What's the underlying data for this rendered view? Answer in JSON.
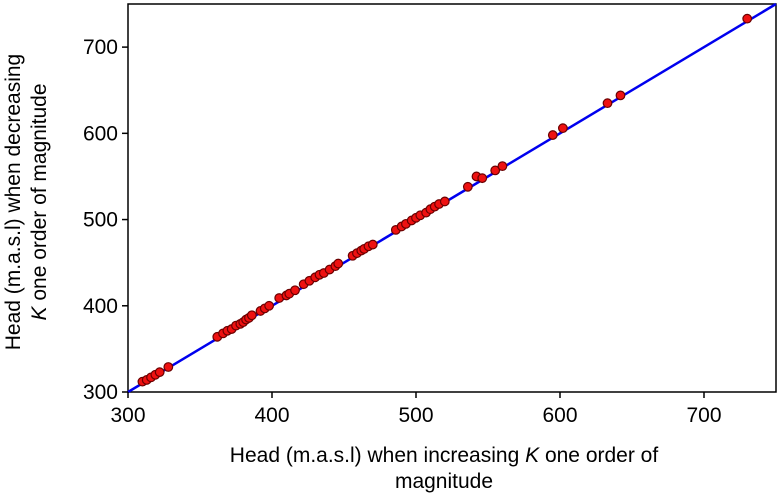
{
  "chart_data": {
    "type": "scatter",
    "xlabel_lines": [
      [
        "Head (m.a.s.l) when increasing ",
        {
          "italic": "K"
        },
        " one order of"
      ],
      [
        "magnitude"
      ]
    ],
    "ylabel_lines": [
      [
        "Head (m.a.s.l) when decreasing"
      ],
      [
        {
          "italic": "K"
        },
        " one order of magnitude"
      ]
    ],
    "xlim": [
      300,
      750
    ],
    "ylim": [
      300,
      750
    ],
    "xticks": [
      300,
      400,
      500,
      600,
      700
    ],
    "yticks": [
      300,
      400,
      500,
      600,
      700
    ],
    "grid": false,
    "reference_line": {
      "x": [
        300,
        750
      ],
      "y": [
        300,
        750
      ],
      "color": "#0000ee"
    },
    "point_color": "#ee1111",
    "point_edge": "#6b0000",
    "points": [
      [
        310,
        312
      ],
      [
        313,
        314
      ],
      [
        316,
        317
      ],
      [
        319,
        320
      ],
      [
        322,
        323
      ],
      [
        328,
        329
      ],
      [
        362,
        364
      ],
      [
        366,
        368
      ],
      [
        369,
        371
      ],
      [
        372,
        373
      ],
      [
        375,
        377
      ],
      [
        378,
        379
      ],
      [
        380,
        381
      ],
      [
        382,
        384
      ],
      [
        384,
        386
      ],
      [
        386,
        389
      ],
      [
        392,
        394
      ],
      [
        395,
        397
      ],
      [
        398,
        400
      ],
      [
        405,
        409
      ],
      [
        410,
        412
      ],
      [
        412,
        414
      ],
      [
        416,
        418
      ],
      [
        422,
        425
      ],
      [
        426,
        429
      ],
      [
        430,
        433
      ],
      [
        433,
        436
      ],
      [
        436,
        438
      ],
      [
        440,
        442
      ],
      [
        444,
        446
      ],
      [
        446,
        449
      ],
      [
        456,
        458
      ],
      [
        459,
        461
      ],
      [
        462,
        464
      ],
      [
        464,
        466
      ],
      [
        467,
        469
      ],
      [
        470,
        471
      ],
      [
        486,
        488
      ],
      [
        490,
        492
      ],
      [
        493,
        495
      ],
      [
        497,
        499
      ],
      [
        500,
        502
      ],
      [
        503,
        505
      ],
      [
        507,
        508
      ],
      [
        510,
        512
      ],
      [
        513,
        515
      ],
      [
        516,
        518
      ],
      [
        520,
        521
      ],
      [
        536,
        538
      ],
      [
        542,
        550
      ],
      [
        546,
        548
      ],
      [
        555,
        557
      ],
      [
        560,
        562
      ],
      [
        595,
        598
      ],
      [
        602,
        606
      ],
      [
        633,
        635
      ],
      [
        642,
        644
      ],
      [
        730,
        733
      ]
    ]
  }
}
